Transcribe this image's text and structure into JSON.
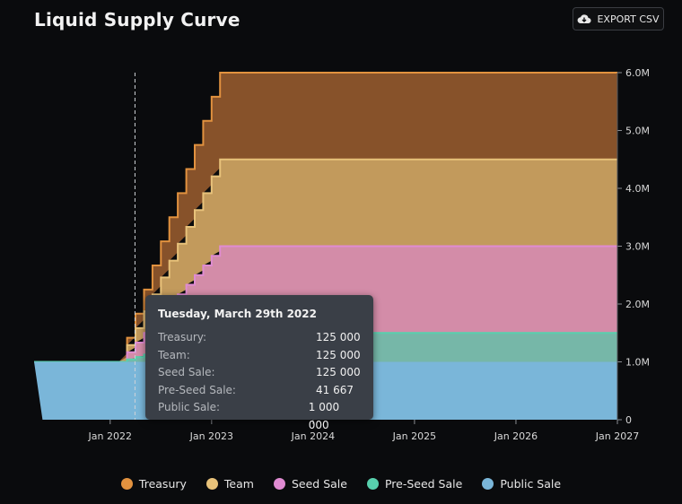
{
  "title": "Liquid Supply Curve",
  "export_button": {
    "label": "EXPORT CSV",
    "icon": "cloud-download-icon"
  },
  "chart_data": {
    "type": "area",
    "stacked": true,
    "title": "Liquid Supply Curve",
    "xlabel": "",
    "ylabel": "",
    "x_ticks": [
      "Jan 2022",
      "Jan 2023",
      "Jan 2024",
      "Jan 2025",
      "Jan 2026",
      "Jan 2027"
    ],
    "x_range": [
      "2021-04",
      "2027-01"
    ],
    "y_ticks": [
      "0",
      "1.0M",
      "2.0M",
      "3.0M",
      "4.0M",
      "5.0M",
      "6.0M"
    ],
    "ylim": [
      0,
      6000000
    ],
    "series": [
      {
        "name": "Public Sale",
        "color": "#7ab6d9",
        "fill": "#7ab6d9",
        "start": "2021-04",
        "vest_months": 0,
        "total": 1000000
      },
      {
        "name": "Pre-Seed Sale",
        "color": "#58d0ad",
        "fill": "#76b7a8",
        "start": "2022-03",
        "vest_months": 12,
        "total": 500000
      },
      {
        "name": "Seed Sale",
        "color": "#e08bd2",
        "fill": "#d38ca8",
        "start": "2022-03",
        "vest_months": 12,
        "total": 1500000
      },
      {
        "name": "Team",
        "color": "#e8c27a",
        "fill": "#c29a5c",
        "start": "2022-03",
        "vest_months": 12,
        "total": 1500000
      },
      {
        "name": "Treasury",
        "color": "#e2923f",
        "fill": "#87522a",
        "start": "2022-03",
        "vest_months": 12,
        "total": 1500000
      }
    ],
    "crosshair_date": "2022-03-29"
  },
  "tooltip": {
    "title": "Tuesday, March 29th 2022",
    "rows": [
      {
        "label": "Treasury:",
        "value": "125 000"
      },
      {
        "label": "Team:",
        "value": "125 000"
      },
      {
        "label": "Seed Sale:",
        "value": "125 000"
      },
      {
        "label": "Pre-Seed Sale:",
        "value": "41 667"
      },
      {
        "label": "Public Sale:",
        "value": "1 000 000"
      }
    ]
  },
  "legend": [
    {
      "label": "Treasury",
      "color": "#e2923f"
    },
    {
      "label": "Team",
      "color": "#e8c27a"
    },
    {
      "label": "Seed Sale",
      "color": "#e08bd2"
    },
    {
      "label": "Pre-Seed Sale",
      "color": "#58d0ad"
    },
    {
      "label": "Public Sale",
      "color": "#7ab6d9"
    }
  ]
}
